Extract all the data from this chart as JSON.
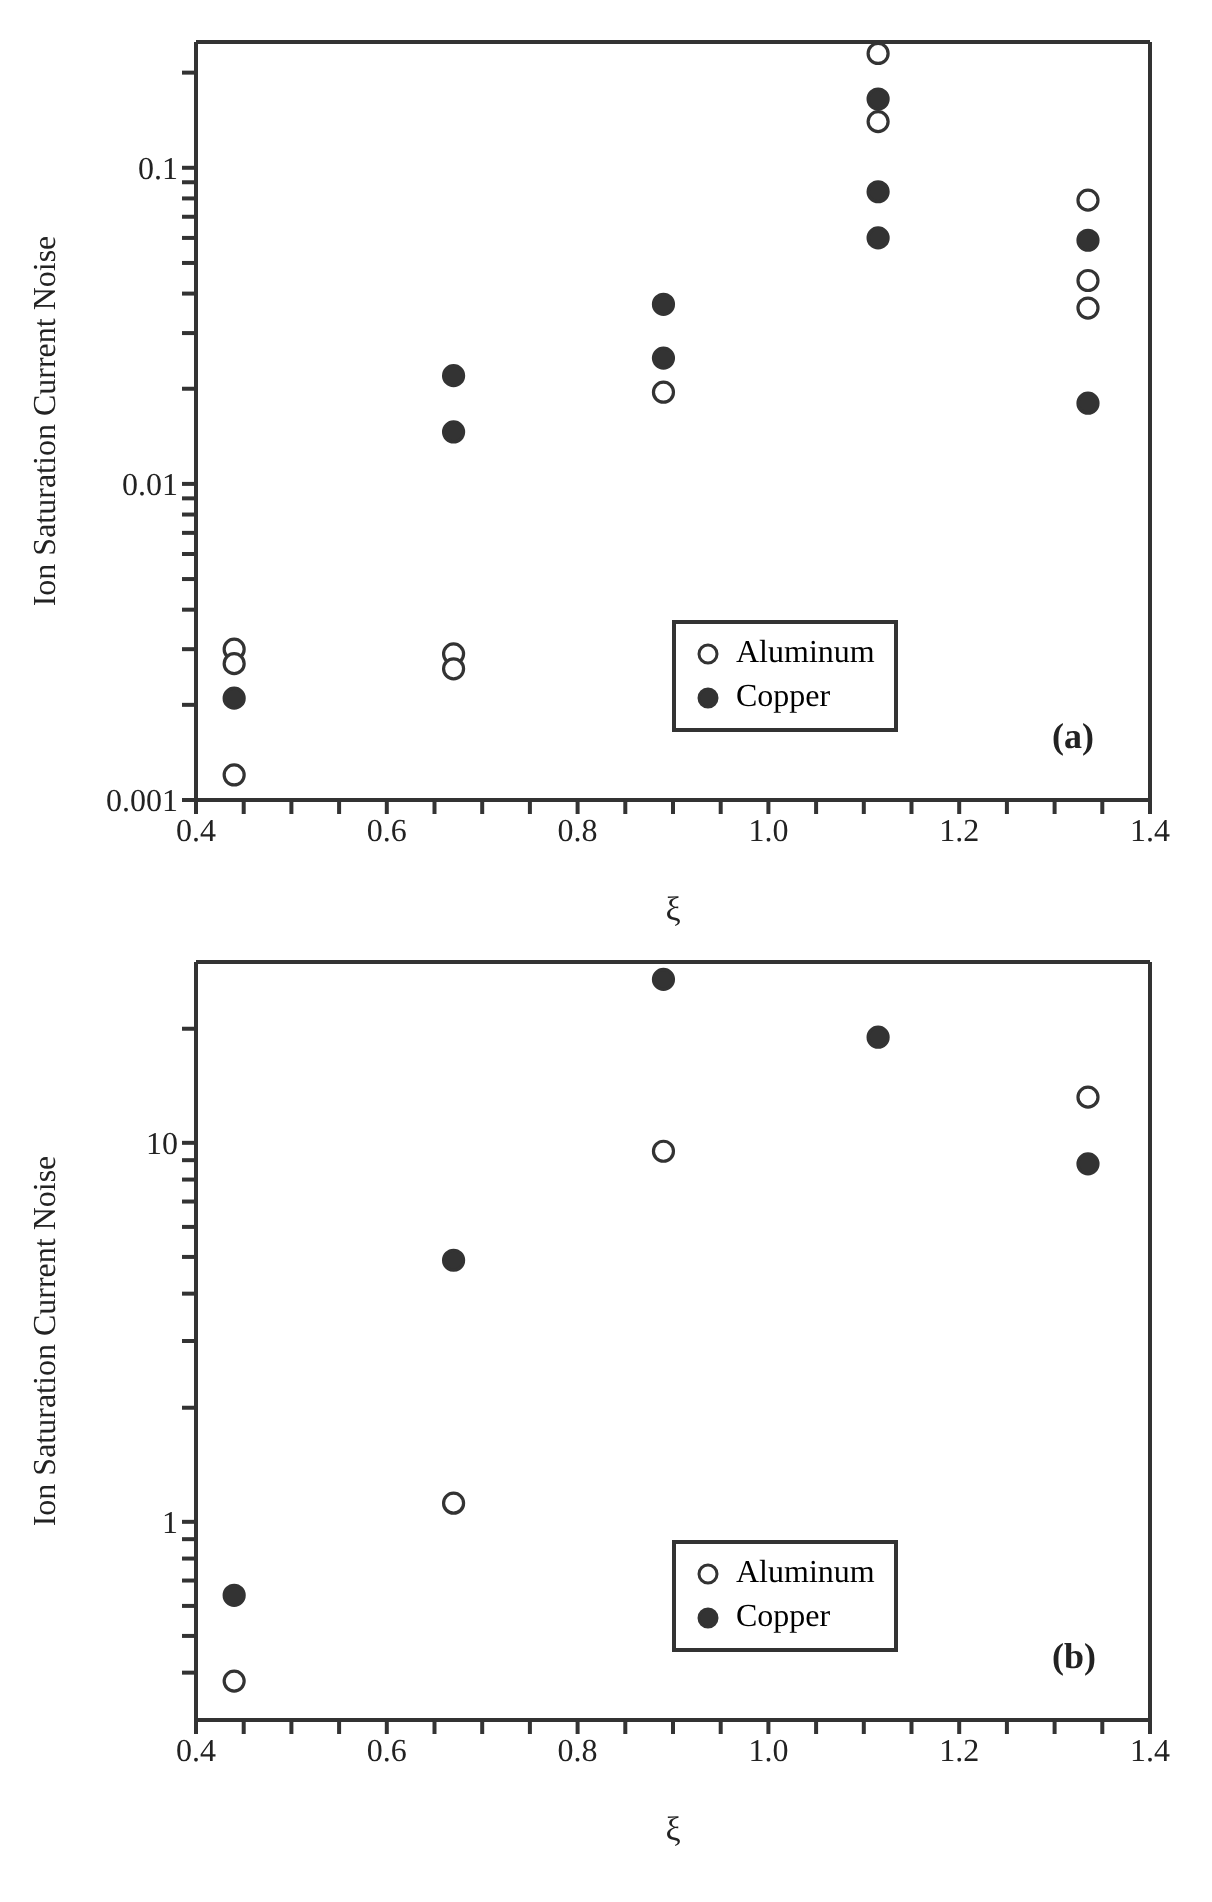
{
  "chart_data": [
    {
      "type": "scatter",
      "xlabel": "ξ",
      "ylabel": "Ion Saturation Current Noise",
      "log": "y",
      "marker": "circle",
      "legend": "bottom right",
      "annotations": [
        "(a)"
      ],
      "xlim": [
        0.4,
        1.4
      ],
      "xticks": [
        0.4,
        {
          "value": 0.45,
          "label": null
        },
        0.6,
        {
          "value": 0.5,
          "label": null
        },
        {
          "value": 0.55,
          "label": null
        },
        {
          "value": 0.65,
          "label": null
        },
        {
          "value": 0.7,
          "label": null
        },
        {
          "value": 0.75,
          "label": null
        },
        0.8,
        {
          "value": 0.85,
          "label": null
        },
        {
          "value": 0.9,
          "label": null
        },
        {
          "value": 0.95,
          "label": null
        },
        {
          "value": 1.0,
          "label": "1.0"
        },
        {
          "value": 1.05,
          "label": null
        },
        {
          "value": 1.1,
          "label": null
        },
        {
          "value": 1.15,
          "label": null
        },
        1.2,
        {
          "value": 1.25,
          "label": null
        },
        {
          "value": 1.3,
          "label": null
        },
        {
          "value": 1.35,
          "label": null
        },
        1.4
      ],
      "ylim": [
        0.001,
        0.25
      ],
      "yticks": [
        0.001,
        {
          "value": 0.002,
          "label": null
        },
        {
          "value": 0.003,
          "label": null
        },
        {
          "value": 0.004,
          "label": null
        },
        {
          "value": 0.005,
          "label": null
        },
        {
          "value": 0.006,
          "label": null
        },
        {
          "value": 0.007,
          "label": null
        },
        {
          "value": 0.008,
          "label": null
        },
        {
          "value": 0.009,
          "label": null
        },
        0.01,
        {
          "value": 0.02,
          "label": null
        },
        {
          "value": 0.03,
          "label": null
        },
        {
          "value": 0.04,
          "label": null
        },
        {
          "value": 0.05,
          "label": null
        },
        {
          "value": 0.06,
          "label": null
        },
        {
          "value": 0.07,
          "label": null
        },
        {
          "value": 0.08,
          "label": null
        },
        {
          "value": 0.09,
          "label": null
        },
        0.1,
        {
          "value": 0.2,
          "label": null
        }
      ],
      "series": [
        {
          "name": "Aluminum",
          "color": "#ffffff",
          "x": [
            0.44,
            0.44,
            0.44,
            0.67,
            0.67,
            0.89,
            1.115,
            1.115,
            1.335,
            1.335,
            1.335
          ],
          "values": [
            0.003,
            0.0027,
            0.0012,
            0.0029,
            0.0026,
            0.0195,
            0.23,
            0.14,
            0.079,
            0.044,
            0.036
          ]
        },
        {
          "name": "Copper",
          "color": "#333333",
          "x": [
            0.44,
            0.67,
            0.67,
            0.89,
            0.89,
            1.115,
            1.115,
            1.115,
            1.335,
            1.335
          ],
          "values": [
            0.0021,
            0.022,
            0.0146,
            0.037,
            0.025,
            0.165,
            0.084,
            0.06,
            0.059,
            0.018
          ]
        }
      ]
    },
    {
      "type": "scatter",
      "xlabel": "ξ",
      "ylabel": "Ion Saturation Current Noise",
      "log": "y",
      "marker": "circle",
      "legend": "bottom right",
      "annotations": [
        "(b)"
      ],
      "xlim": [
        0.4,
        1.4
      ],
      "xticks": [
        0.4,
        {
          "value": 0.45,
          "label": null
        },
        0.6,
        {
          "value": 0.5,
          "label": null
        },
        {
          "value": 0.55,
          "label": null
        },
        {
          "value": 0.65,
          "label": null
        },
        {
          "value": 0.7,
          "label": null
        },
        {
          "value": 0.75,
          "label": null
        },
        0.8,
        {
          "value": 0.85,
          "label": null
        },
        {
          "value": 0.9,
          "label": null
        },
        {
          "value": 0.95,
          "label": null
        },
        {
          "value": 1.0,
          "label": "1.0"
        },
        {
          "value": 1.05,
          "label": null
        },
        {
          "value": 1.1,
          "label": null
        },
        {
          "value": 1.15,
          "label": null
        },
        1.2,
        {
          "value": 1.25,
          "label": null
        },
        {
          "value": 1.3,
          "label": null
        },
        {
          "value": 1.35,
          "label": null
        },
        1.4
      ],
      "ylim": [
        0.3,
        30
      ],
      "yticks": [
        {
          "value": 0.4,
          "label": null
        },
        {
          "value": 0.5,
          "label": null
        },
        {
          "value": 0.6,
          "label": null
        },
        {
          "value": 0.7,
          "label": null
        },
        {
          "value": 0.8,
          "label": null
        },
        {
          "value": 0.9,
          "label": null
        },
        1,
        {
          "value": 2,
          "label": null
        },
        {
          "value": 3,
          "label": null
        },
        {
          "value": 4,
          "label": null
        },
        {
          "value": 5,
          "label": null
        },
        {
          "value": 6,
          "label": null
        },
        {
          "value": 7,
          "label": null
        },
        {
          "value": 8,
          "label": null
        },
        {
          "value": 9,
          "label": null
        },
        10,
        {
          "value": 20,
          "label": null
        }
      ],
      "series": [
        {
          "name": "Aluminum",
          "color": "#ffffff",
          "x": [
            0.44,
            0.67,
            0.89,
            1.335
          ],
          "values": [
            0.38,
            1.12,
            9.5,
            13.2
          ]
        },
        {
          "name": "Copper",
          "color": "#333333",
          "x": [
            0.44,
            0.67,
            0.89,
            1.115,
            1.335
          ],
          "values": [
            0.64,
            4.9,
            27,
            19,
            8.8
          ]
        }
      ]
    }
  ]
}
